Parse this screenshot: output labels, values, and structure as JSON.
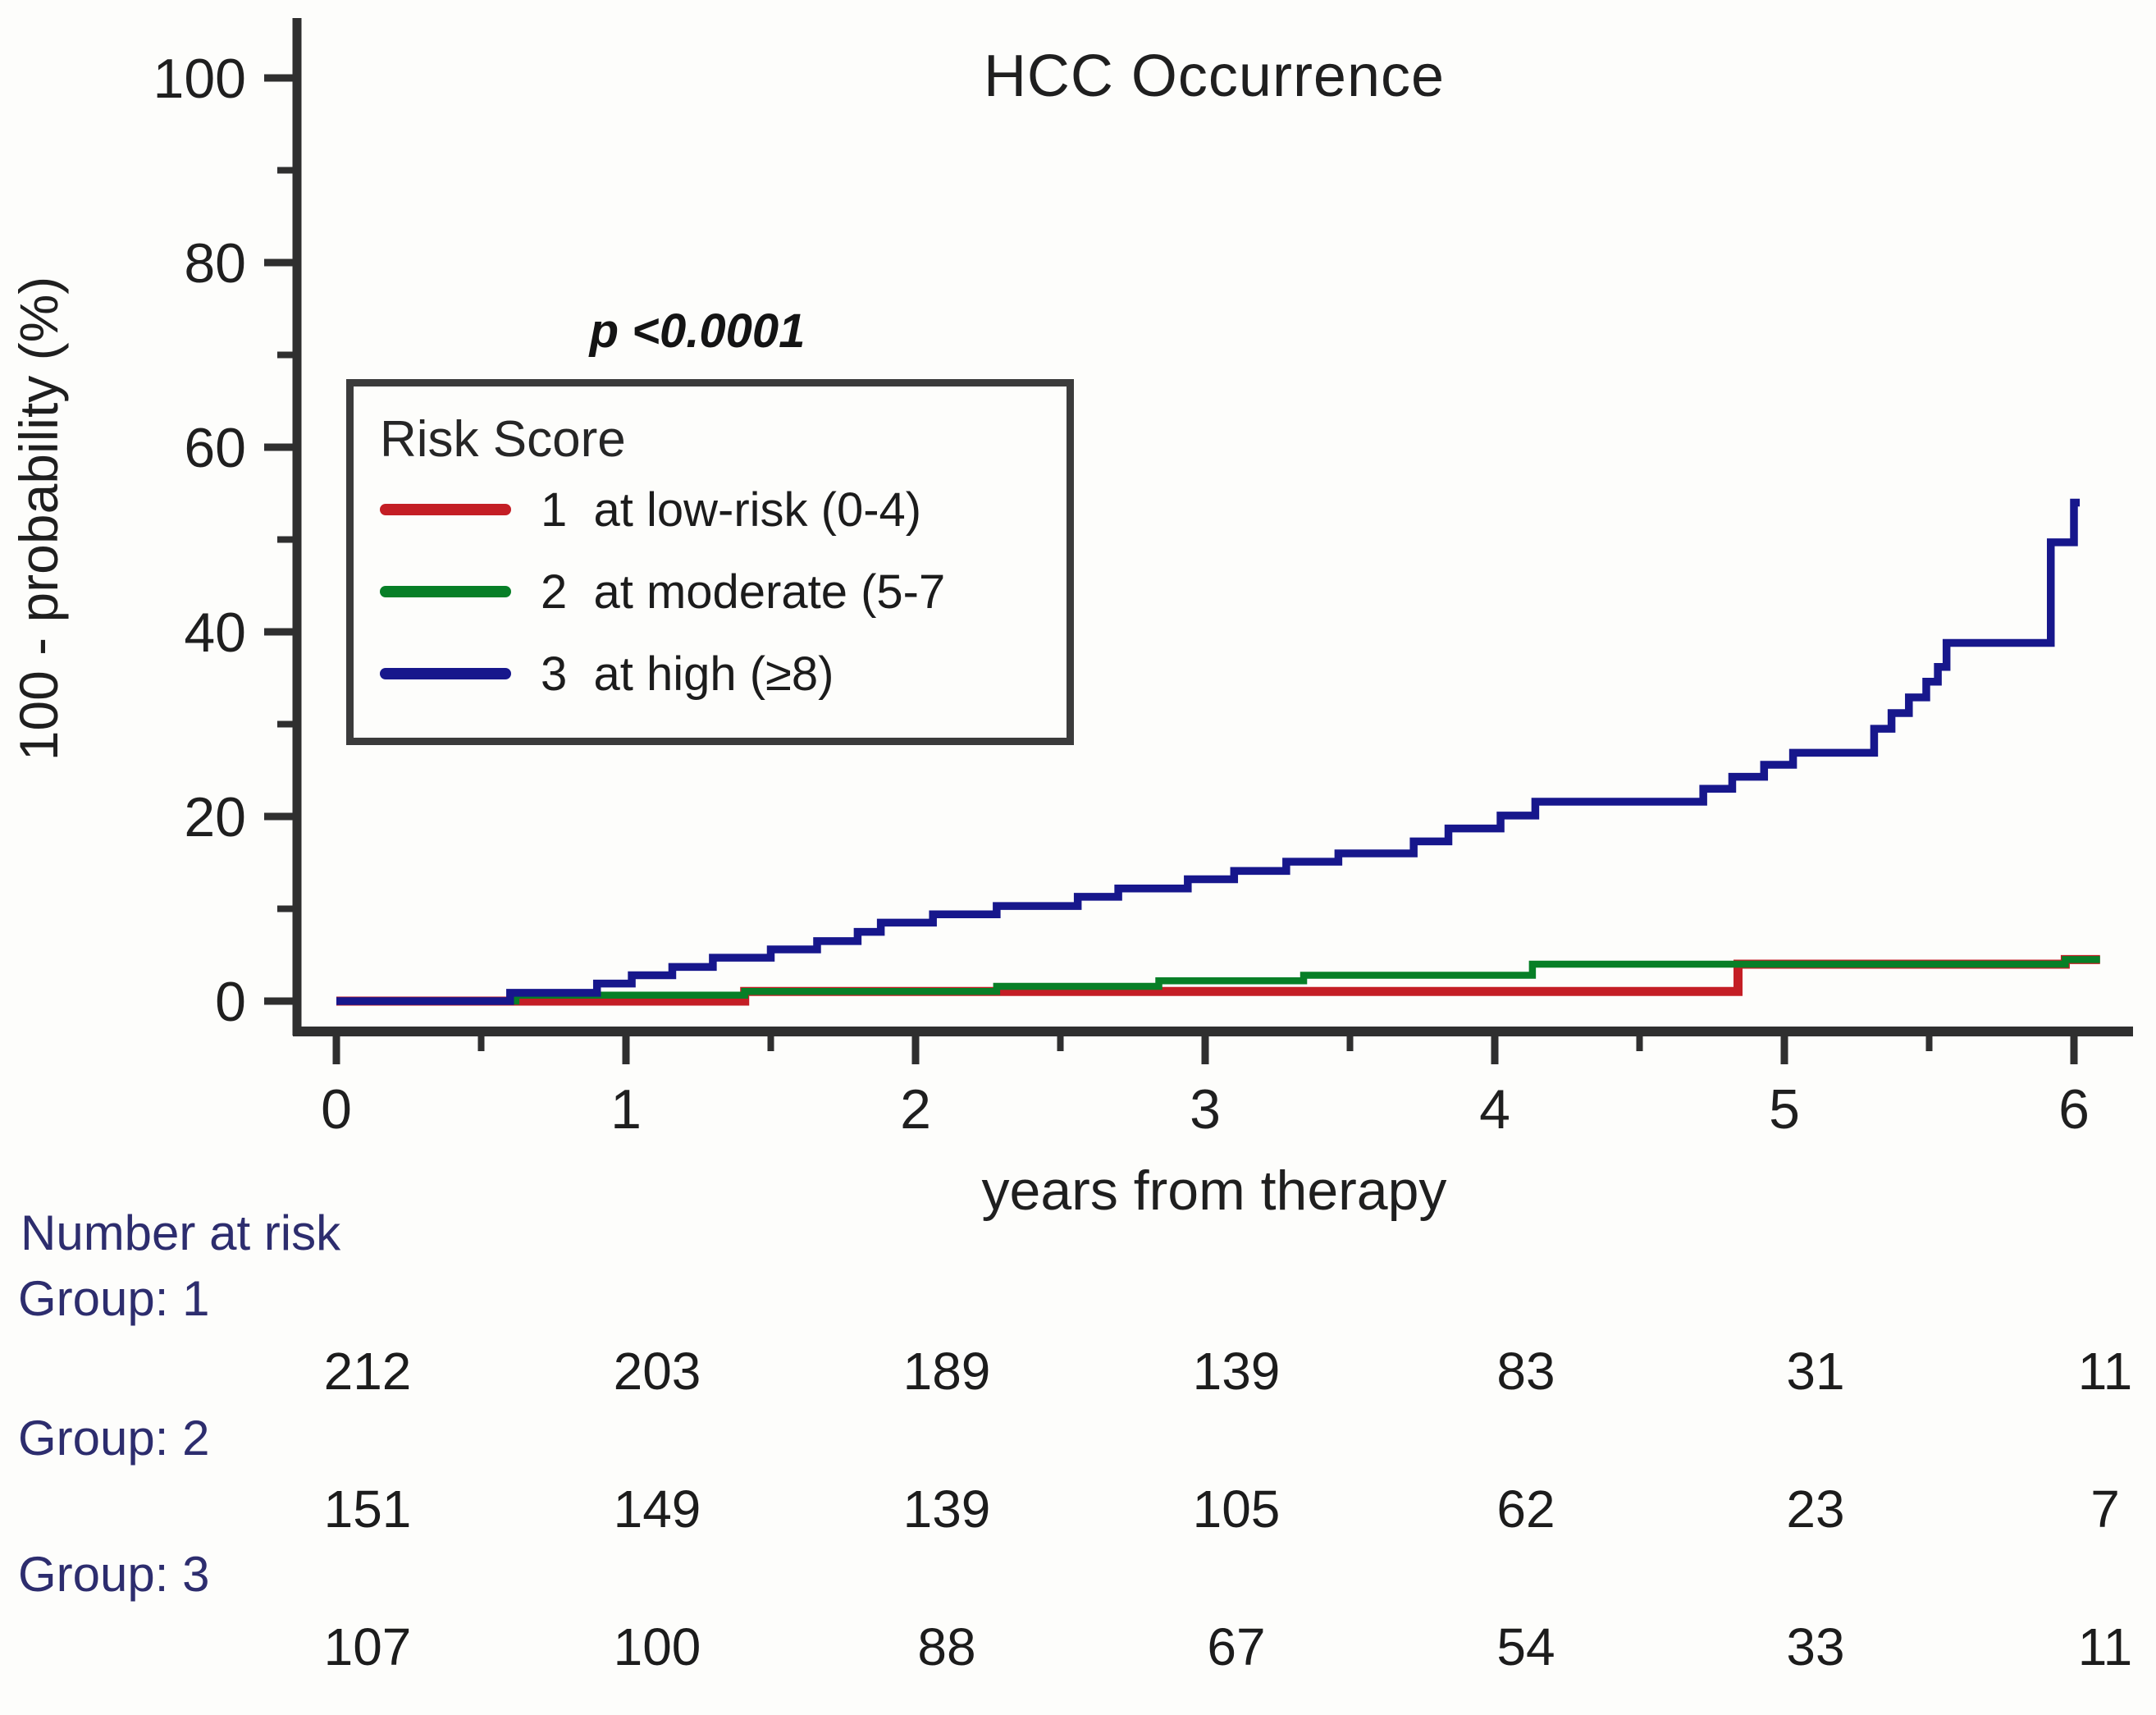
{
  "title": "HCC Occurrence",
  "p_value": "p <0.0001",
  "colors": {
    "axis": "#2f2f2f",
    "text": "#1f1f1f",
    "risk_label_text": "#2d2d6e",
    "group1_red": "#c41e25",
    "group2_green": "#077f27",
    "group3_navy": "#17178c"
  },
  "legend": {
    "header": "Risk Score",
    "items": [
      {
        "label": "1  at low-risk (0-4)",
        "color": "#c41e25"
      },
      {
        "label": "2  at moderate (5-7",
        "color": "#077f27"
      },
      {
        "label": "3  at high (≥8)",
        "color": "#17178c"
      }
    ]
  },
  "axes": {
    "x_label": "years from therapy",
    "y_label": "100 -  probability (%)",
    "x_ticks": [
      0,
      1,
      2,
      3,
      4,
      5,
      6
    ],
    "y_ticks": [
      0,
      20,
      40,
      60,
      80,
      100
    ]
  },
  "chart_data": {
    "type": "line",
    "subtype": "kaplan-meier-step",
    "title": "HCC Occurrence",
    "xlabel": "years from therapy",
    "ylabel": "100 -  probability (%)",
    "xlim": [
      0,
      6
    ],
    "ylim": [
      0,
      100
    ],
    "annotation": "p <0.0001",
    "legend_position": "upper-left-inside",
    "grid": false,
    "series": [
      {
        "name": "1 at low-risk (0-4)",
        "color": "#c41e25",
        "end_t": 6.09,
        "steps": [
          [
            0,
            0
          ],
          [
            1.41,
            1.05
          ],
          [
            4.84,
            4.0
          ],
          [
            5.97,
            4.5
          ]
        ]
      },
      {
        "name": "2 at moderate (5-7)",
        "color": "#077f27",
        "end_t": 6.09,
        "steps": [
          [
            0,
            0
          ],
          [
            0.62,
            0.65
          ],
          [
            1.41,
            1.05
          ],
          [
            2.28,
            1.6
          ],
          [
            2.84,
            2.2
          ],
          [
            3.34,
            2.8
          ],
          [
            4.13,
            4.0
          ],
          [
            5.97,
            4.5
          ]
        ]
      },
      {
        "name": "3 at high (≥8)",
        "color": "#17178c",
        "end_t": 6.02,
        "steps": [
          [
            0,
            0
          ],
          [
            0.6,
            0.9
          ],
          [
            0.9,
            1.9
          ],
          [
            1.02,
            2.8
          ],
          [
            1.16,
            3.7
          ],
          [
            1.3,
            4.7
          ],
          [
            1.5,
            5.6
          ],
          [
            1.66,
            6.5
          ],
          [
            1.8,
            7.5
          ],
          [
            1.88,
            8.5
          ],
          [
            2.06,
            9.4
          ],
          [
            2.28,
            10.3
          ],
          [
            2.56,
            11.3
          ],
          [
            2.7,
            12.2
          ],
          [
            2.94,
            13.2
          ],
          [
            3.1,
            14.1
          ],
          [
            3.28,
            15.1
          ],
          [
            3.46,
            16.0
          ],
          [
            3.72,
            17.3
          ],
          [
            3.84,
            18.7
          ],
          [
            4.02,
            20.1
          ],
          [
            4.14,
            21.6
          ],
          [
            4.72,
            23.0
          ],
          [
            4.82,
            24.3
          ],
          [
            4.93,
            25.6
          ],
          [
            5.03,
            26.9
          ],
          [
            5.31,
            29.5
          ],
          [
            5.37,
            31.2
          ],
          [
            5.43,
            32.9
          ],
          [
            5.49,
            34.6
          ],
          [
            5.53,
            36.2
          ],
          [
            5.56,
            38.8
          ],
          [
            5.92,
            49.7
          ],
          [
            6.0,
            54.0
          ]
        ]
      }
    ]
  },
  "number_at_risk": {
    "header": "Number at risk",
    "time_points": [
      0,
      1,
      2,
      3,
      4,
      5,
      6
    ],
    "groups": [
      {
        "label": "Group: 1",
        "values": [
          "212",
          "203",
          "189",
          "139",
          "83",
          "31",
          "11"
        ]
      },
      {
        "label": "Group: 2",
        "values": [
          "151",
          "149",
          "139",
          "105",
          "62",
          "23",
          "7"
        ]
      },
      {
        "label": "Group: 3",
        "values": [
          "107",
          "100",
          "88",
          "67",
          "54",
          "33",
          "11"
        ]
      }
    ]
  }
}
